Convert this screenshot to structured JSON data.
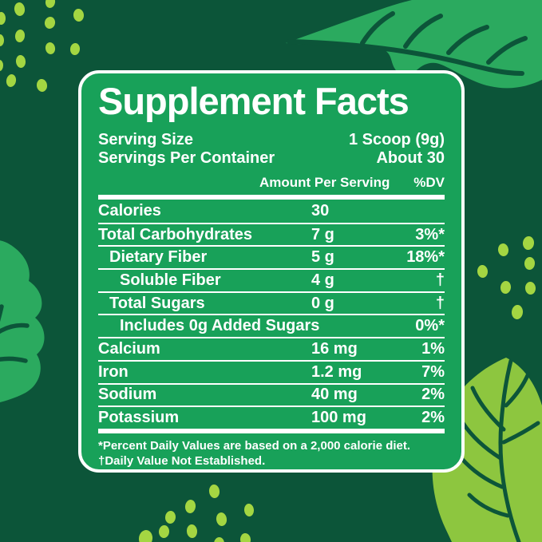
{
  "panel": {
    "title": "Supplement Facts",
    "serving": [
      {
        "label": "Serving Size",
        "value": "1 Scoop (9g)"
      },
      {
        "label": "Servings Per Container",
        "value": "About 30"
      }
    ],
    "table": {
      "amount_header": "Amount Per Serving",
      "dv_header": "%DV",
      "rows": [
        {
          "name": "Calories",
          "amount": "30",
          "dv": "",
          "indent": 0
        },
        {
          "name": "Total Carbohydrates",
          "amount": "7 g",
          "dv": "3%*",
          "indent": 0
        },
        {
          "name": "Dietary Fiber",
          "amount": "5 g",
          "dv": "18%*",
          "indent": 1
        },
        {
          "name": "Soluble Fiber",
          "amount": "4 g",
          "dv": "†",
          "indent": 2
        },
        {
          "name": "Total Sugars",
          "amount": "0 g",
          "dv": "†",
          "indent": 1
        },
        {
          "name": "Includes 0g Added Sugars",
          "amount": "",
          "dv": "0%*",
          "indent": 2
        },
        {
          "name": "Calcium",
          "amount": "16 mg",
          "dv": "1%",
          "indent": 0
        },
        {
          "name": "Iron",
          "amount": "1.2 mg",
          "dv": "7%",
          "indent": 0
        },
        {
          "name": "Sodium",
          "amount": "40 mg",
          "dv": "2%",
          "indent": 0
        },
        {
          "name": "Potassium",
          "amount": "100 mg",
          "dv": "2%",
          "indent": 0
        }
      ]
    },
    "footnotes": [
      "*Percent Daily Values are based on a 2,000 calorie diet.",
      "†Daily Value Not Established."
    ]
  },
  "decor": {
    "icons": [
      "leaf-top-right-icon",
      "leaf-left-icon",
      "leaf-bottom-right-icon",
      "decorative-dot"
    ]
  },
  "colors": {
    "background": "#0c5539",
    "card_green": "#18a159",
    "leaf_green": "#2baa5f",
    "leaf_lime": "#8dc63f",
    "dot_lime": "#a4d642",
    "text_white": "#ffffff"
  }
}
